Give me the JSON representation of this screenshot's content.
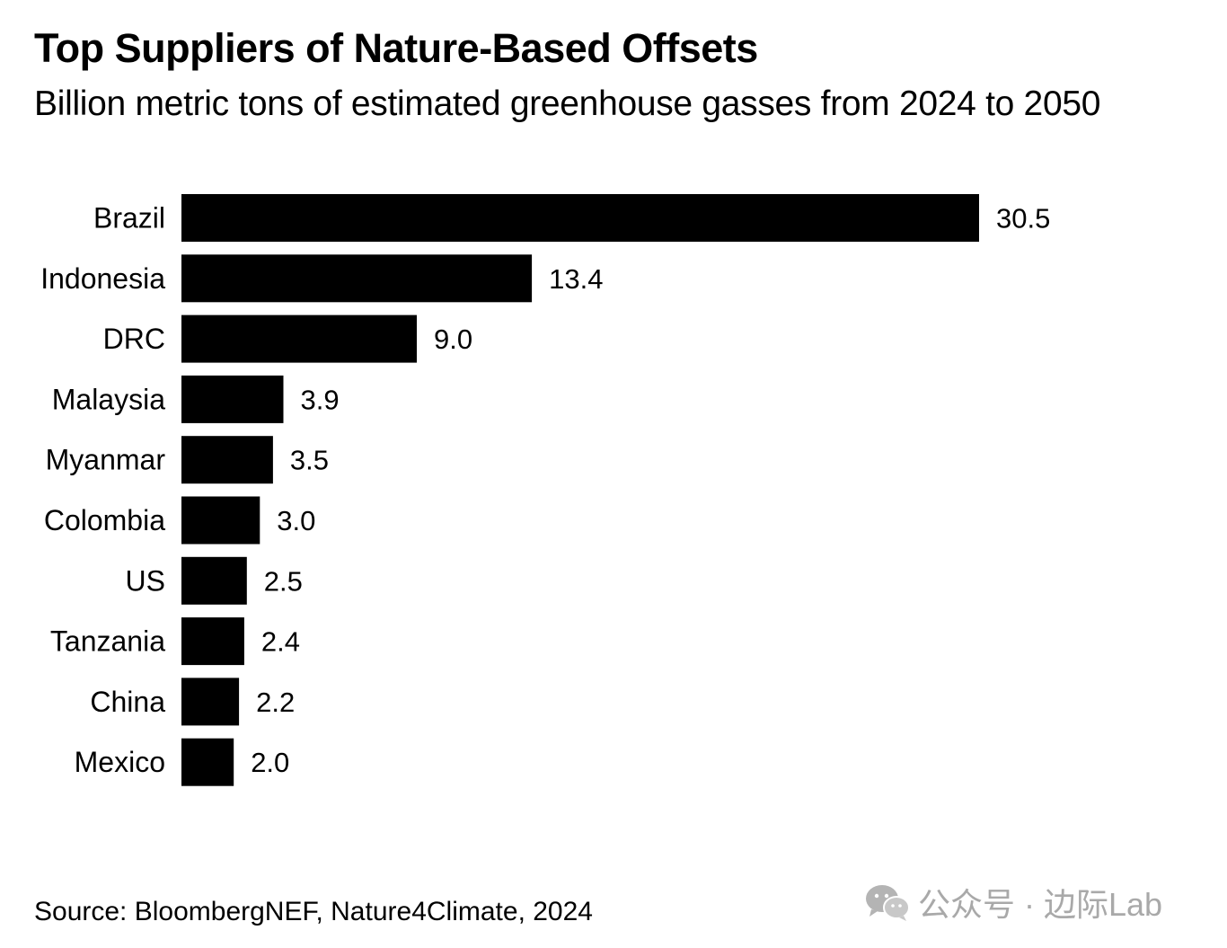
{
  "chart_data": {
    "type": "bar",
    "orientation": "horizontal",
    "title": "Top Suppliers of Nature-Based Offsets",
    "subtitle": "Billion metric tons of estimated greenhouse gasses from 2024 to 2050",
    "categories": [
      "Brazil",
      "Indonesia",
      "DRC",
      "Malaysia",
      "Myanmar",
      "Colombia",
      "US",
      "Tanzania",
      "China",
      "Mexico"
    ],
    "values": [
      30.5,
      13.4,
      9.0,
      3.9,
      3.5,
      3.0,
      2.5,
      2.4,
      2.2,
      2.0
    ],
    "value_labels": [
      "30.5",
      "13.4",
      "9.0",
      "3.9",
      "3.5",
      "3.0",
      "2.5",
      "2.4",
      "2.2",
      "2.0"
    ],
    "xlim": [
      0,
      30.5
    ],
    "xlabel": "",
    "ylabel": "",
    "grid": false,
    "bar_color": "#000000"
  },
  "source": "Source: BloombergNEF, Nature4Climate, 2024",
  "watermark": {
    "text": "公众号 · 边际Lab",
    "icon": "wechat-icon"
  }
}
